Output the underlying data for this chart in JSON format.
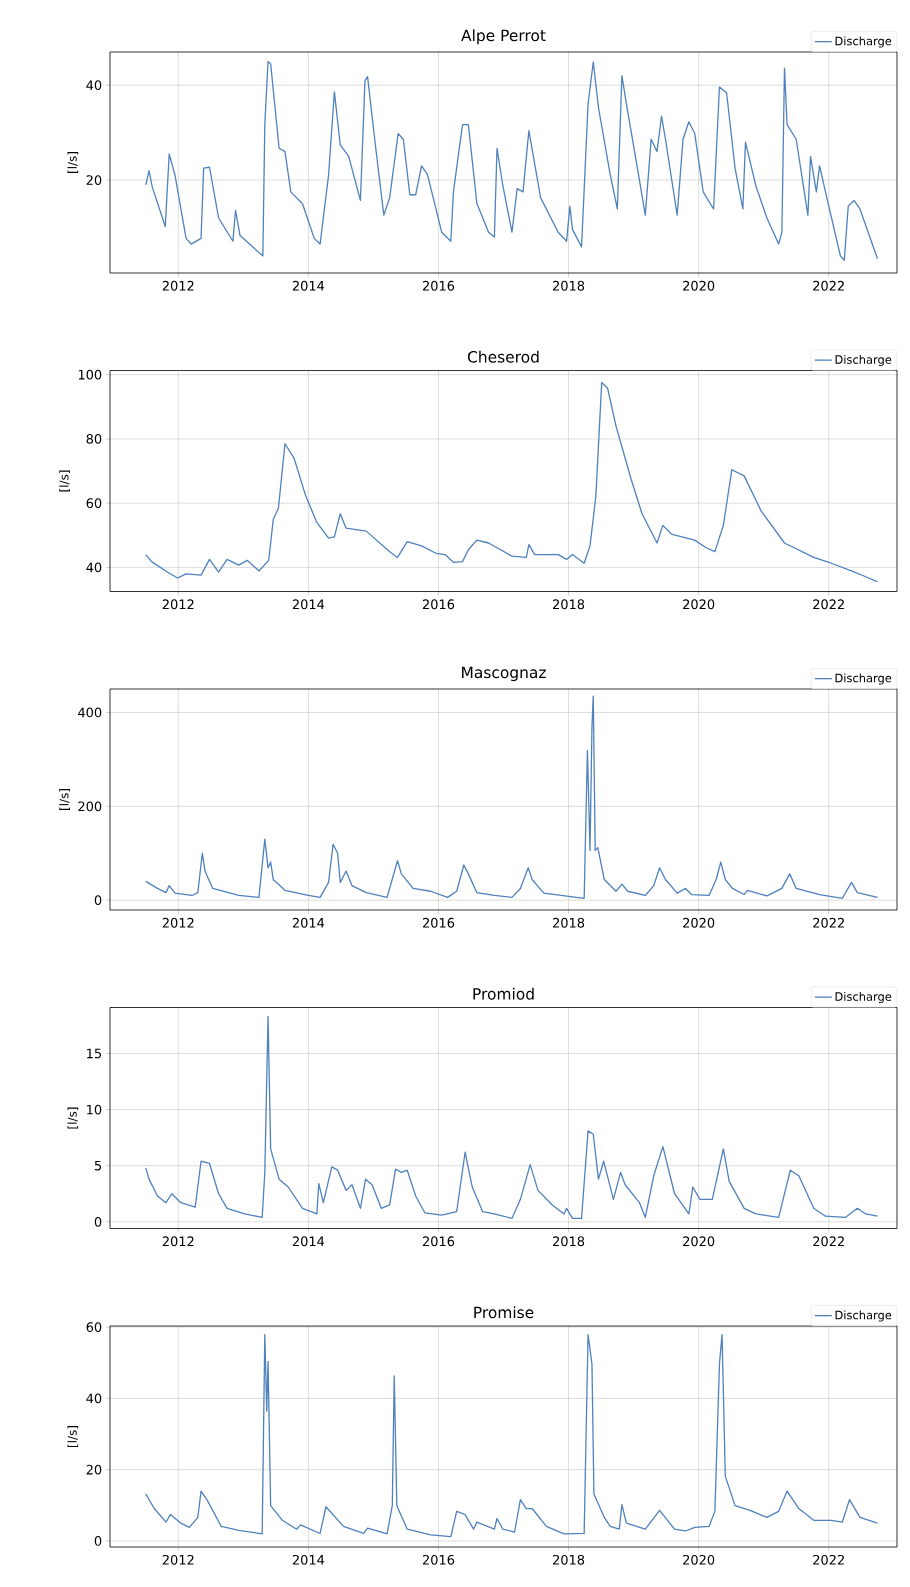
{
  "chart_data": [
    {
      "type": "line",
      "title": "Alpe Perrot",
      "ylabel": "[l/s]",
      "grid": true,
      "legend": "top right",
      "xlim": [
        2010.95,
        2023.05
      ],
      "ylim": [
        0.4,
        47
      ],
      "xticks": [
        2012,
        2014,
        2016,
        2018,
        2020,
        2022
      ],
      "yticks": [
        20,
        40
      ],
      "x": [
        2011.5,
        2011.55,
        2011.6,
        2011.8,
        2011.86,
        2011.95,
        2012.12,
        2012.2,
        2012.35,
        2012.39,
        2012.48,
        2012.62,
        2012.84,
        2012.88,
        2012.95,
        2013.24,
        2013.3,
        2013.33,
        2013.38,
        2013.42,
        2013.55,
        2013.64,
        2013.73,
        2013.91,
        2014.09,
        2014.18,
        2014.31,
        2014.4,
        2014.49,
        2014.62,
        2014.8,
        2014.87,
        2014.91,
        2015.03,
        2015.16,
        2015.25,
        2015.38,
        2015.46,
        2015.56,
        2015.65,
        2015.74,
        2015.83,
        2016.05,
        2016.19,
        2016.23,
        2016.37,
        2016.46,
        2016.59,
        2016.77,
        2016.86,
        2016.9,
        2016.99,
        2017.13,
        2017.21,
        2017.3,
        2017.39,
        2017.57,
        2017.84,
        2017.97,
        2018.02,
        2018.06,
        2018.2,
        2018.3,
        2018.38,
        2018.46,
        2018.64,
        2018.75,
        2018.82,
        2018.89,
        2019.09,
        2019.18,
        2019.27,
        2019.36,
        2019.43,
        2019.49,
        2019.67,
        2019.76,
        2019.85,
        2019.94,
        2020.07,
        2020.23,
        2020.32,
        2020.43,
        2020.56,
        2020.68,
        2020.72,
        2020.88,
        2021.05,
        2021.23,
        2021.28,
        2021.32,
        2021.36,
        2021.5,
        2021.68,
        2021.72,
        2021.81,
        2021.86,
        2021.95,
        2022.18,
        2022.24,
        2022.3,
        2022.39,
        2022.48,
        2022.75
      ],
      "series": [
        {
          "name": "Discharge",
          "color": "#4f81bd",
          "values": [
            19,
            22,
            18.5,
            10.2,
            25.5,
            21,
            7.7,
            6.5,
            7.7,
            22.5,
            22.7,
            12,
            7.1,
            13.6,
            8.3,
            4.7,
            4,
            31.7,
            45,
            44.5,
            26.7,
            26,
            17.5,
            15,
            7.7,
            6.5,
            21,
            38.6,
            27.4,
            25,
            15.7,
            40.9,
            41.8,
            27.4,
            12.6,
            16.3,
            29.8,
            28.6,
            16.9,
            16.9,
            23,
            21.2,
            9,
            7.1,
            17.5,
            31.7,
            31.7,
            15.1,
            9,
            8,
            26.7,
            18.8,
            9,
            18.2,
            17.5,
            30.4,
            16.3,
            9,
            7.1,
            14.5,
            9.6,
            5.9,
            36,
            44.9,
            35.3,
            21.2,
            13.9,
            42,
            36,
            20,
            12.6,
            28.6,
            26,
            33.5,
            28.6,
            12.6,
            28.6,
            32.3,
            29.8,
            17.5,
            13.9,
            39.6,
            38.4,
            22.5,
            13.9,
            28,
            18.8,
            12,
            6.5,
            9,
            43.6,
            31.7,
            28.6,
            12.6,
            25,
            17.5,
            23,
            17.5,
            4,
            3.1,
            14.5,
            15.7,
            13.9,
            3.4
          ]
        }
      ]
    },
    {
      "type": "line",
      "title": "Cheserod",
      "ylabel": "[l/s]",
      "grid": true,
      "legend": "top right",
      "xlim": [
        2010.95,
        2023.05
      ],
      "ylim": [
        32.5,
        101.3
      ],
      "xticks": [
        2012,
        2014,
        2016,
        2018,
        2020,
        2022
      ],
      "yticks": [
        40,
        60,
        80,
        100
      ],
      "x": [
        2011.5,
        2011.59,
        2011.86,
        2011.99,
        2012.12,
        2012.35,
        2012.48,
        2012.62,
        2012.75,
        2012.93,
        2013.06,
        2013.24,
        2013.39,
        2013.46,
        2013.54,
        2013.64,
        2013.78,
        2013.96,
        2014.13,
        2014.31,
        2014.4,
        2014.49,
        2014.58,
        2014.89,
        2015.25,
        2015.37,
        2015.52,
        2015.74,
        2015.96,
        2016.1,
        2016.23,
        2016.37,
        2016.46,
        2016.59,
        2016.77,
        2017.13,
        2017.35,
        2017.39,
        2017.48,
        2017.84,
        2017.97,
        2018.06,
        2018.24,
        2018.33,
        2018.42,
        2018.51,
        2018.6,
        2018.73,
        2018.96,
        2019.13,
        2019.36,
        2019.45,
        2019.58,
        2019.94,
        2020.11,
        2020.25,
        2020.38,
        2020.51,
        2020.7,
        2020.96,
        2021.32,
        2021.77,
        2022.04,
        2022.35,
        2022.57,
        2022.75
      ],
      "series": [
        {
          "name": "Discharge",
          "color": "#4f81bd",
          "values": [
            44,
            41.8,
            38.2,
            36.7,
            38,
            37.6,
            42.5,
            38.5,
            42.5,
            40.7,
            42.2,
            38.9,
            42.2,
            54.9,
            58.5,
            78.5,
            74,
            62.2,
            54,
            49.1,
            49.5,
            56.7,
            52.2,
            51.3,
            44.9,
            43.1,
            48,
            46.7,
            44.4,
            44,
            41.6,
            41.8,
            45.5,
            48.5,
            47.6,
            43.5,
            43.1,
            47.1,
            44,
            44,
            42.5,
            44,
            41.3,
            46.7,
            62.2,
            97.6,
            95.8,
            84,
            67.6,
            56.7,
            47.6,
            53.1,
            50.4,
            48.5,
            46.2,
            44.9,
            53.1,
            70.4,
            68.5,
            57.6,
            47.6,
            43.1,
            41.3,
            38.9,
            37.1,
            35.5
          ]
        }
      ]
    },
    {
      "type": "line",
      "title": "Mascognaz",
      "ylabel": "[l/s]",
      "grid": true,
      "legend": "top right",
      "xlim": [
        2010.95,
        2023.05
      ],
      "ylim": [
        -21,
        450
      ],
      "xticks": [
        2012,
        2014,
        2016,
        2018,
        2020,
        2022
      ],
      "yticks": [
        0,
        200,
        400
      ],
      "x": [
        2011.5,
        2011.68,
        2011.81,
        2011.86,
        2011.95,
        2012.21,
        2012.3,
        2012.37,
        2012.41,
        2012.53,
        2012.93,
        2013.24,
        2013.33,
        2013.38,
        2013.42,
        2013.46,
        2013.64,
        2014.0,
        2014.18,
        2014.31,
        2014.38,
        2014.45,
        2014.49,
        2014.58,
        2014.67,
        2014.89,
        2015.21,
        2015.37,
        2015.43,
        2015.61,
        2015.88,
        2016.14,
        2016.28,
        2016.39,
        2016.46,
        2016.59,
        2016.86,
        2017.13,
        2017.26,
        2017.38,
        2017.44,
        2017.62,
        2018.24,
        2018.29,
        2018.33,
        2018.36,
        2018.38,
        2018.41,
        2018.45,
        2018.55,
        2018.73,
        2018.82,
        2018.91,
        2019.18,
        2019.31,
        2019.4,
        2019.49,
        2019.67,
        2019.8,
        2019.89,
        2020.16,
        2020.27,
        2020.34,
        2020.41,
        2020.52,
        2020.7,
        2020.75,
        2021.05,
        2021.28,
        2021.4,
        2021.5,
        2021.86,
        2022.21,
        2022.35,
        2022.44,
        2022.75
      ],
      "series": [
        {
          "name": "Discharge",
          "color": "#4f81bd",
          "values": [
            40,
            25,
            16,
            31,
            15,
            10,
            16,
            100,
            62,
            25,
            10,
            6,
            130,
            69,
            81,
            44,
            21,
            10,
            6,
            38,
            119,
            100,
            38,
            62,
            31,
            16,
            6,
            84,
            56,
            25,
            19,
            6,
            19,
            75,
            56,
            16,
            10,
            6,
            25,
            69,
            44,
            15,
            4,
            319,
            106,
            369,
            435,
            106,
            112,
            44,
            19,
            34,
            19,
            10,
            31,
            69,
            44,
            15,
            25,
            12,
            10,
            44,
            81,
            44,
            25,
            12,
            21,
            9,
            25,
            56,
            25,
            12,
            4,
            38,
            16,
            6
          ]
        }
      ]
    },
    {
      "type": "line",
      "title": "Promiod",
      "ylabel": "[l/s]",
      "grid": true,
      "legend": "top right",
      "xlim": [
        2010.95,
        2023.05
      ],
      "ylim": [
        -0.6,
        19.1
      ],
      "xticks": [
        2012,
        2014,
        2016,
        2018,
        2020,
        2022
      ],
      "yticks": [
        0,
        5,
        10,
        15
      ],
      "x": [
        2011.5,
        2011.55,
        2011.68,
        2011.81,
        2011.9,
        2012.04,
        2012.26,
        2012.35,
        2012.48,
        2012.62,
        2012.75,
        2013.02,
        2013.29,
        2013.33,
        2013.38,
        2013.42,
        2013.55,
        2013.69,
        2013.91,
        2014.13,
        2014.16,
        2014.23,
        2014.36,
        2014.45,
        2014.58,
        2014.67,
        2014.8,
        2014.88,
        2014.98,
        2015.12,
        2015.25,
        2015.34,
        2015.43,
        2015.52,
        2015.65,
        2015.79,
        2016.05,
        2016.28,
        2016.41,
        2016.52,
        2016.68,
        2016.86,
        2017.13,
        2017.26,
        2017.41,
        2017.53,
        2017.75,
        2017.93,
        2017.97,
        2018.06,
        2018.2,
        2018.3,
        2018.38,
        2018.46,
        2018.54,
        2018.69,
        2018.8,
        2018.87,
        2019.09,
        2019.18,
        2019.31,
        2019.45,
        2019.63,
        2019.85,
        2019.91,
        2020.02,
        2020.21,
        2020.38,
        2020.47,
        2020.7,
        2020.88,
        2021.23,
        2021.41,
        2021.54,
        2021.77,
        2021.95,
        2022.26,
        2022.44,
        2022.57,
        2022.75
      ],
      "series": [
        {
          "name": "Discharge",
          "color": "#4f81bd",
          "values": [
            4.8,
            3.8,
            2.3,
            1.7,
            2.5,
            1.7,
            1.3,
            5.4,
            5.2,
            2.5,
            1.2,
            0.7,
            0.4,
            4.4,
            18.3,
            6.5,
            3.8,
            3.1,
            1.2,
            0.7,
            3.4,
            1.7,
            4.9,
            4.6,
            2.8,
            3.3,
            1.2,
            3.8,
            3.3,
            1.2,
            1.5,
            4.7,
            4.4,
            4.6,
            2.3,
            0.8,
            0.6,
            0.9,
            6.2,
            3.1,
            0.9,
            0.7,
            0.3,
            2,
            5.1,
            2.8,
            1.5,
            0.7,
            1.2,
            0.3,
            0.3,
            8.1,
            7.8,
            3.8,
            5.4,
            2,
            4.4,
            3.3,
            1.7,
            0.4,
            4.1,
            6.7,
            2.5,
            0.7,
            3.1,
            2,
            2,
            6.5,
            3.6,
            1.2,
            0.7,
            0.4,
            4.6,
            4.1,
            1.2,
            0.5,
            0.4,
            1.2,
            0.7,
            0.5
          ]
        }
      ]
    },
    {
      "type": "line",
      "title": "Promise",
      "ylabel": "[l/s]",
      "grid": true,
      "legend": "top right",
      "xlim": [
        2010.95,
        2023.05
      ],
      "ylim": [
        -1.7,
        60.3
      ],
      "xticks": [
        2012,
        2014,
        2016,
        2018,
        2020,
        2022
      ],
      "yticks": [
        0,
        20,
        40,
        60
      ],
      "x": [
        2011.5,
        2011.63,
        2011.81,
        2011.88,
        2012.04,
        2012.17,
        2012.3,
        2012.35,
        2012.44,
        2012.66,
        2012.93,
        2013.29,
        2013.33,
        2013.36,
        2013.38,
        2013.42,
        2013.6,
        2013.82,
        2013.88,
        2014.18,
        2014.27,
        2014.54,
        2014.85,
        2014.91,
        2015.21,
        2015.29,
        2015.32,
        2015.36,
        2015.52,
        2015.88,
        2016.19,
        2016.28,
        2016.41,
        2016.54,
        2016.59,
        2016.86,
        2016.9,
        2016.99,
        2017.17,
        2017.26,
        2017.35,
        2017.44,
        2017.66,
        2017.93,
        2018.24,
        2018.3,
        2018.36,
        2018.39,
        2018.55,
        2018.64,
        2018.78,
        2018.82,
        2018.89,
        2019.18,
        2019.4,
        2019.63,
        2019.8,
        2019.94,
        2020.16,
        2020.25,
        2020.32,
        2020.36,
        2020.41,
        2020.56,
        2020.79,
        2021.05,
        2021.23,
        2021.36,
        2021.54,
        2021.77,
        2022.04,
        2022.21,
        2022.32,
        2022.48,
        2022.75
      ],
      "series": [
        {
          "name": "Discharge",
          "color": "#4f81bd",
          "values": [
            13.2,
            9.1,
            5.3,
            7.4,
            5,
            3.8,
            6.6,
            14,
            11.6,
            4.1,
            3,
            2,
            57.9,
            36.4,
            50.4,
            9.9,
            5.8,
            3.3,
            4.5,
            2.1,
            9.6,
            4.1,
            2.1,
            3.6,
            2,
            9.9,
            46.3,
            9.9,
            3.3,
            1.7,
            1.2,
            8.3,
            7.4,
            3.3,
            5.3,
            3.3,
            6.3,
            3.3,
            2.5,
            11.6,
            9.1,
            9.1,
            4.1,
            2,
            2.1,
            57.9,
            49.6,
            13.2,
            6.6,
            4.1,
            3.3,
            10.2,
            5,
            3.3,
            8.6,
            3.3,
            2.8,
            3.8,
            4.1,
            8.3,
            49.6,
            57.9,
            18.2,
            9.9,
            8.6,
            6.6,
            8.3,
            14,
            9.1,
            5.8,
            5.8,
            5.3,
            11.6,
            6.6,
            5
          ]
        }
      ]
    }
  ]
}
